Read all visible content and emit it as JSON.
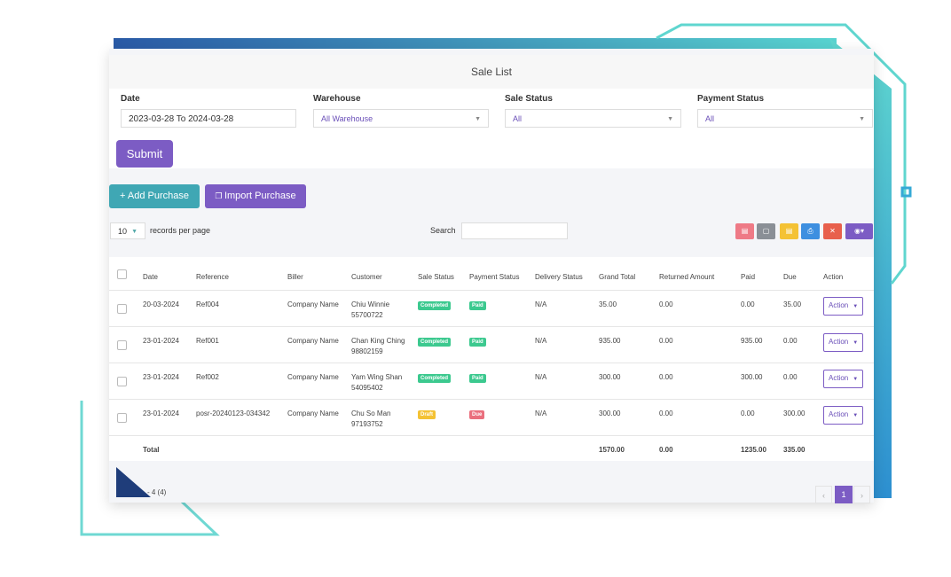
{
  "title": "Sale List",
  "filters": [
    {
      "label": "Date",
      "value": "2023-03-28 To 2024-03-28"
    },
    {
      "label": "Warehouse",
      "value": "All Warehouse"
    },
    {
      "label": "Sale Status",
      "value": "All"
    },
    {
      "label": "Payment Status",
      "value": "All"
    }
  ],
  "submit": "Submit",
  "buttons": [
    "+ Add Purchase",
    "Import Purchase"
  ],
  "page_length": "10",
  "records_per_page": "records per page",
  "search_label": "Search",
  "table": {
    "headers": [
      "Date",
      "Reference",
      "Biller",
      "Customer",
      "Sale Status",
      "Payment Status",
      "Delivery Status",
      "Grand Total",
      "Returned Amount",
      "Paid",
      "Due",
      "Action"
    ],
    "rows": [
      {
        "date": "20-03-2024",
        "reference": "Ref004",
        "biller": "Company Name",
        "customer": "Chiu Winnie 55700722",
        "sale_status": "Completed",
        "sale_status_color": "#3cc98f",
        "payment_status": "Paid",
        "payment_status_color": "#3cc98f",
        "delivery_status": "N/A",
        "grand_total": "35.00",
        "returned_amount": "0.00",
        "paid": "0.00",
        "due": "35.00",
        "action": "Action"
      },
      {
        "date": "23-01-2024",
        "reference": "Ref001",
        "biller": "Company Name",
        "customer": "Chan King Ching 98802159",
        "sale_status": "Completed",
        "sale_status_color": "#3cc98f",
        "payment_status": "Paid",
        "payment_status_color": "#3cc98f",
        "delivery_status": "N/A",
        "grand_total": "935.00",
        "returned_amount": "0.00",
        "paid": "935.00",
        "due": "0.00",
        "action": "Action"
      },
      {
        "date": "23-01-2024",
        "reference": "Ref002",
        "biller": "Company Name",
        "customer": "Yam Wing Shan 54095402",
        "sale_status": "Completed",
        "sale_status_color": "#3cc98f",
        "payment_status": "Paid",
        "payment_status_color": "#3cc98f",
        "delivery_status": "N/A",
        "grand_total": "300.00",
        "returned_amount": "0.00",
        "paid": "300.00",
        "due": "0.00",
        "action": "Action"
      },
      {
        "date": "23-01-2024",
        "reference": "posr-20240123-034342",
        "biller": "Company Name",
        "customer": "Chu So Man 97193752",
        "sale_status": "Draft",
        "sale_status_color": "#f4c234",
        "payment_status": "Due",
        "payment_status_color": "#ea6f7d",
        "delivery_status": "N/A",
        "grand_total": "300.00",
        "returned_amount": "0.00",
        "paid": "0.00",
        "due": "300.00",
        "action": "Action"
      }
    ],
    "total": {
      "label": "Total",
      "grand_total": "1570.00",
      "returned_amount": "0.00",
      "paid": "1235.00",
      "due": "335.00"
    }
  },
  "info": "- 4 (4)",
  "pagination": [
    "‹",
    "1",
    "›"
  ]
}
